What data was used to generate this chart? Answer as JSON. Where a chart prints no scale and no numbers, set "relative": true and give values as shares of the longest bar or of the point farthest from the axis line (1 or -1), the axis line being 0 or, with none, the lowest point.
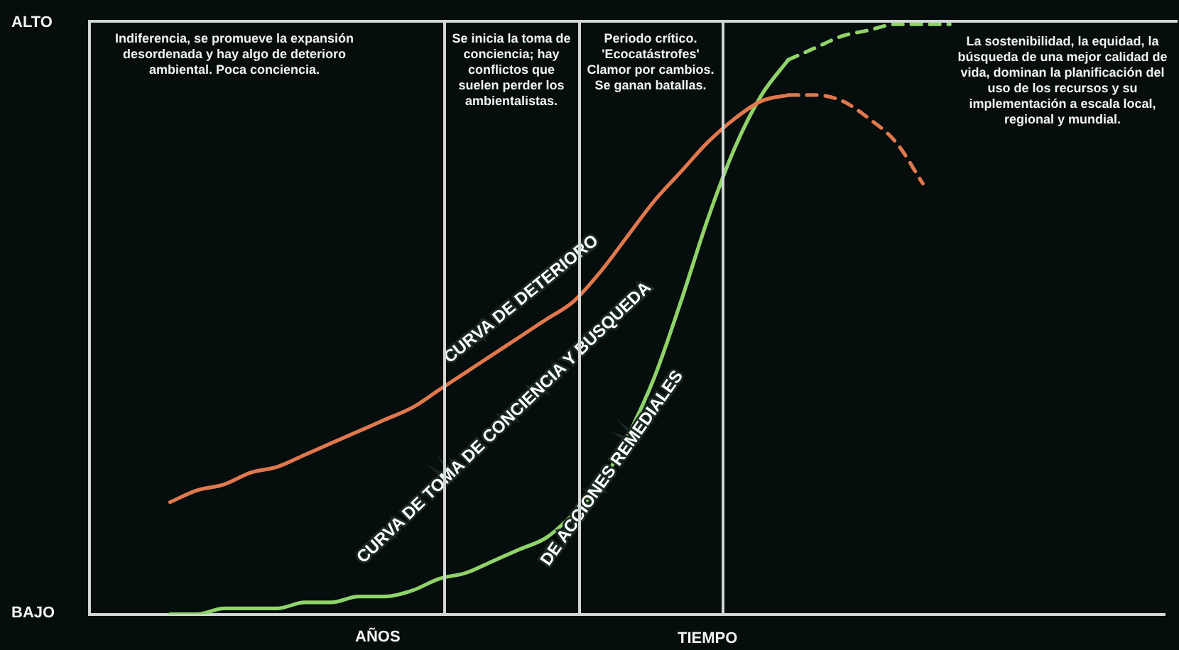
{
  "chart_data": {
    "type": "line",
    "relative": true,
    "legend": false,
    "marker": "none",
    "categories": [
      null,
      null,
      null,
      null,
      null,
      null,
      null,
      null,
      null,
      null,
      null,
      null,
      null,
      null,
      null,
      null,
      null,
      null,
      null,
      null,
      null,
      null,
      null,
      null,
      null,
      null,
      null,
      null,
      null,
      null,
      null,
      null,
      null,
      null,
      null,
      null,
      null,
      null,
      null,
      null,
      null
    ],
    "series": [
      {
        "name": "CURVA DE DETERIORO",
        "color": "#e0784e",
        "line_style": "solid",
        "values": [
          null,
          null,
          null,
          0.19,
          0.21,
          0.22,
          0.24,
          0.25,
          0.27,
          0.29,
          0.31,
          0.33,
          0.35,
          0.38,
          0.41,
          0.44,
          0.47,
          0.5,
          0.53,
          0.58,
          0.64,
          0.7,
          0.75,
          0.8,
          0.84,
          0.87,
          0.88,
          null,
          null,
          null,
          null,
          null,
          null,
          null,
          null,
          null,
          null,
          null,
          null,
          null,
          null
        ]
      },
      {
        "color": "#e0784e",
        "line_style": "dashed",
        "values": [
          null,
          null,
          null,
          null,
          null,
          null,
          null,
          null,
          null,
          null,
          null,
          null,
          null,
          null,
          null,
          null,
          null,
          null,
          null,
          null,
          null,
          null,
          null,
          null,
          null,
          null,
          0.88,
          0.88,
          0.87,
          0.84,
          0.8,
          0.73,
          null,
          null,
          null,
          null,
          null,
          null,
          null,
          null,
          null
        ]
      },
      {
        "name": "CURVA DE TOMA DE CONCIENCIA Y BUSQUEDA DE ACCIONES REMEDIALES",
        "color": "#8fd36a",
        "line_style": "solid",
        "values": [
          null,
          null,
          null,
          0.0,
          0.0,
          0.01,
          0.01,
          0.01,
          0.02,
          0.02,
          0.03,
          0.03,
          0.04,
          0.06,
          0.07,
          0.09,
          0.11,
          0.13,
          0.17,
          0.22,
          0.3,
          0.4,
          0.53,
          0.67,
          0.79,
          0.88,
          0.94,
          null,
          null,
          null,
          null,
          null,
          null,
          null,
          null,
          null,
          null,
          null,
          null,
          null,
          null
        ]
      },
      {
        "color": "#8fd36a",
        "line_style": "dashed",
        "values": [
          null,
          null,
          null,
          null,
          null,
          null,
          null,
          null,
          null,
          null,
          null,
          null,
          null,
          null,
          null,
          null,
          null,
          null,
          null,
          null,
          null,
          null,
          null,
          null,
          null,
          null,
          0.94,
          0.96,
          0.98,
          0.99,
          1.0,
          1.0,
          1.0,
          null,
          null,
          null,
          null,
          null,
          null,
          null,
          null
        ]
      }
    ],
    "annotations": [
      "Indiferencia, se promueve la expansión desordenada y hay algo de deterioro ambiental. Poca conciencia.",
      "Se inicia la toma de conciencia; hay conflictos que suelen perder los ambientalistas.",
      "Periodo crítico. 'Ecocatástrofes' Clamor por cambios. Se ganan batallas.",
      "La sostenibilidad, la equidad, la búsqueda de una mejor calidad de vida, dominan la planificación del uso de los recursos y su implementación a escala local, regional y mundial.",
      "ALTO",
      "BAJO",
      "AÑOS",
      "TIEMPO"
    ]
  }
}
